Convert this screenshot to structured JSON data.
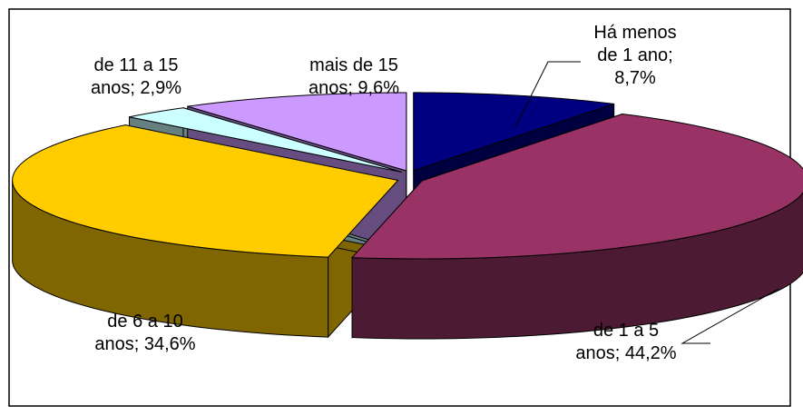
{
  "chart_data": {
    "type": "pie",
    "three_d": true,
    "values": [
      8.7,
      44.2,
      34.6,
      2.9,
      9.6
    ],
    "value_labels": [
      "Há menos de 1 ano; 8,7%",
      "de 1 a 5 anos; 44,2%",
      "de 6 a 10 anos; 34,6%",
      "de 11 a 15 anos; 2,9%",
      "mais de 15 anos; 9,6%"
    ],
    "colors": [
      "#000080",
      "#993366",
      "#ffcc00",
      "#ccffff",
      "#cc99ff"
    ]
  }
}
